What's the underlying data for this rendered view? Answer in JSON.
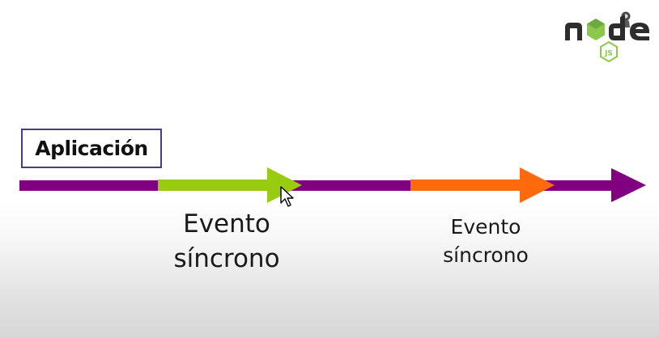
{
  "diagram": {
    "app_label": "Aplicación",
    "events": [
      {
        "line1": "Evento",
        "line2": "síncrono"
      },
      {
        "line1": "Evento",
        "line2": "síncrono"
      }
    ],
    "colors": {
      "timeline": "#800080",
      "event_1": "#99cc11",
      "event_2": "#ff6a0d",
      "label_border": "#4a3a8e"
    }
  },
  "logo": {
    "name": "node-js-logo",
    "text": "node",
    "badge": "JS"
  }
}
